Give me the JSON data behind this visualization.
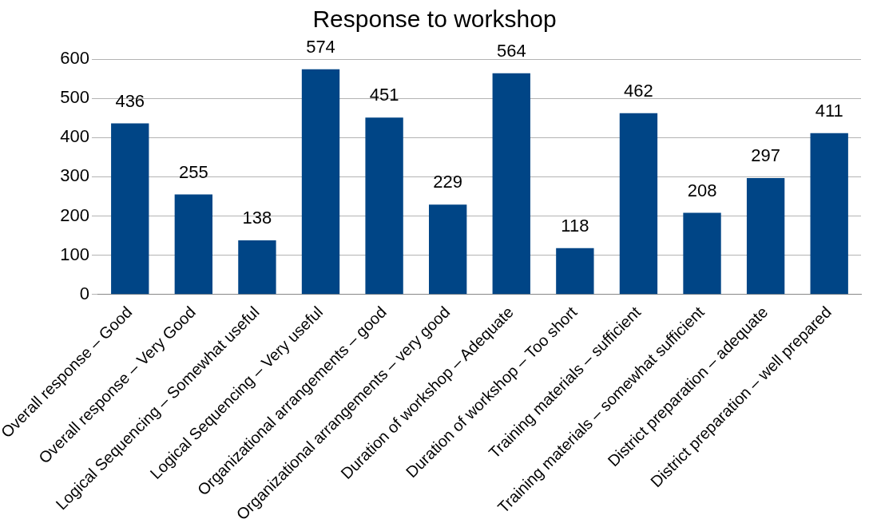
{
  "chart_data": {
    "type": "bar",
    "title": "Response to workshop",
    "categories": [
      "Overall response – Good",
      "Overall response – Very Good",
      "Logical Sequencing – Somewhat useful",
      "Logical Sequencing – Very useful",
      "Organizational arrangements – good",
      "Organizational arrangements – very good",
      "Duration of workshop – Adequate",
      "Duration of workshop – Too short",
      "Training materials – sufficient",
      "Training materials – somewhat sufficient",
      "District preparation – adequate",
      "District preparation – well prepared"
    ],
    "values": [
      436,
      255,
      138,
      574,
      451,
      229,
      564,
      118,
      462,
      208,
      297,
      411
    ],
    "color": "#004586",
    "ylim": [
      0,
      600
    ],
    "yticks": [
      0,
      100,
      200,
      300,
      400,
      500,
      600
    ],
    "grid": "y",
    "data_labels": true,
    "legend": false
  }
}
